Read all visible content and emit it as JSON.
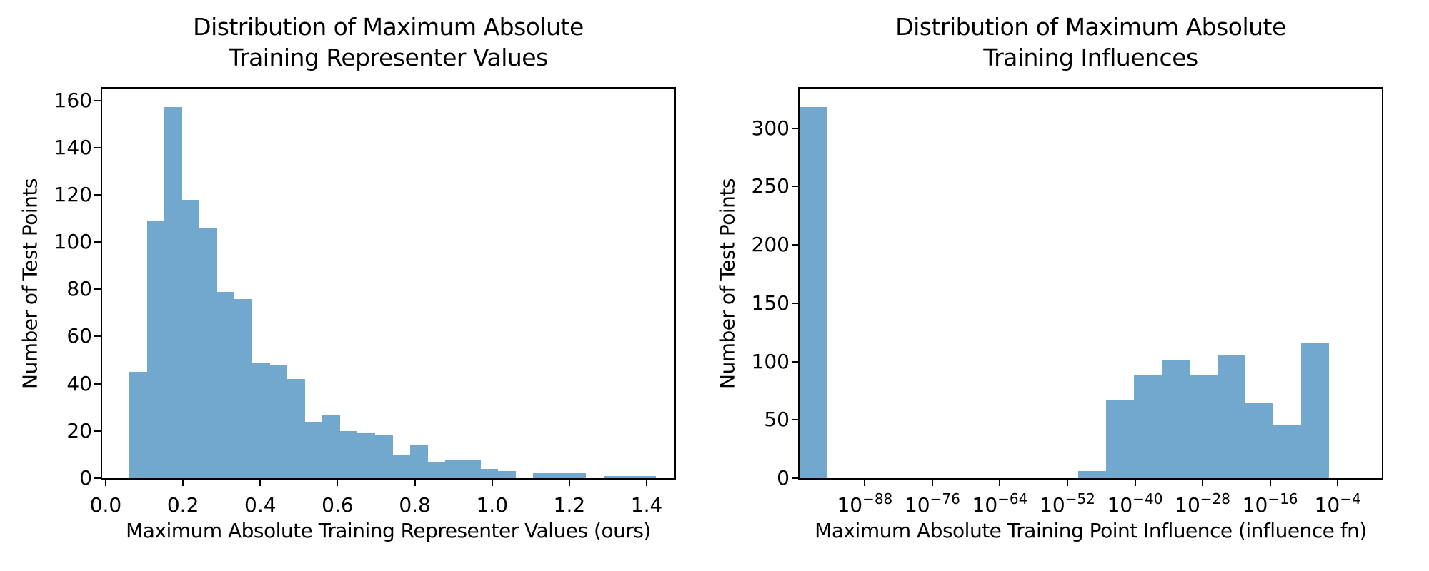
{
  "figure": {
    "background": "#ffffff",
    "bar_color": "#72a8ce",
    "axis_color": "#000000",
    "text_color": "#000000"
  },
  "chart_data": [
    {
      "type": "bar",
      "subtype": "histogram",
      "title": "Distribution of Maximum Absolute\nTraining Representer Values",
      "xlabel": "Maximum Absolute Training Representer Values (ours)",
      "ylabel": "Number of Test Points",
      "x_scale": "linear",
      "xlim": [
        -0.0092,
        1.472
      ],
      "ylim": [
        0,
        165
      ],
      "grid": false,
      "legend": null,
      "x_ticks": [
        0.0,
        0.2,
        0.4,
        0.6,
        0.8,
        1.0,
        1.2,
        1.4
      ],
      "x_tick_labels": [
        "0.0",
        "0.2",
        "0.4",
        "0.6",
        "0.8",
        "1.0",
        "1.2",
        "1.4"
      ],
      "y_ticks": [
        0,
        20,
        40,
        60,
        80,
        100,
        120,
        140,
        160
      ],
      "y_tick_labels": [
        "0",
        "20",
        "40",
        "60",
        "80",
        "100",
        "120",
        "140",
        "160"
      ],
      "bin_start": 0.061,
      "bin_width": 0.04545,
      "counts": [
        45,
        109,
        157,
        118,
        106,
        79,
        76,
        49,
        48,
        42,
        24,
        27,
        20,
        19,
        18,
        10,
        14,
        7,
        8,
        8,
        4,
        3,
        0,
        2,
        2,
        2,
        0,
        1,
        1,
        1
      ]
    },
    {
      "type": "bar",
      "subtype": "histogram",
      "title": "Distribution of Maximum Absolute\nTraining Influences",
      "xlabel": "Maximum Absolute Training Point Influence (influence fn)",
      "ylabel": "Number of Test Points",
      "x_scale": "log10",
      "xlim_log10": [
        -99.6,
        3.85
      ],
      "ylim": [
        0,
        334
      ],
      "grid": false,
      "legend": null,
      "x_ticks_log10": [
        -88,
        -76,
        -64,
        -52,
        -40,
        -28,
        -16,
        -4
      ],
      "x_tick_base": "10",
      "x_tick_exponents": [
        "−88",
        "−76",
        "−64",
        "−52",
        "−40",
        "−28",
        "−16",
        "−4"
      ],
      "y_ticks": [
        0,
        50,
        100,
        150,
        200,
        250,
        300
      ],
      "y_tick_labels": [
        "0",
        "50",
        "100",
        "150",
        "200",
        "250",
        "300"
      ],
      "bin_start_log10": -99.6,
      "bin_width_log10": 4.95,
      "counts": [
        318,
        0,
        0,
        0,
        0,
        0,
        0,
        0,
        0,
        0,
        6,
        67,
        88,
        101,
        88,
        106,
        65,
        45,
        116
      ]
    }
  ]
}
